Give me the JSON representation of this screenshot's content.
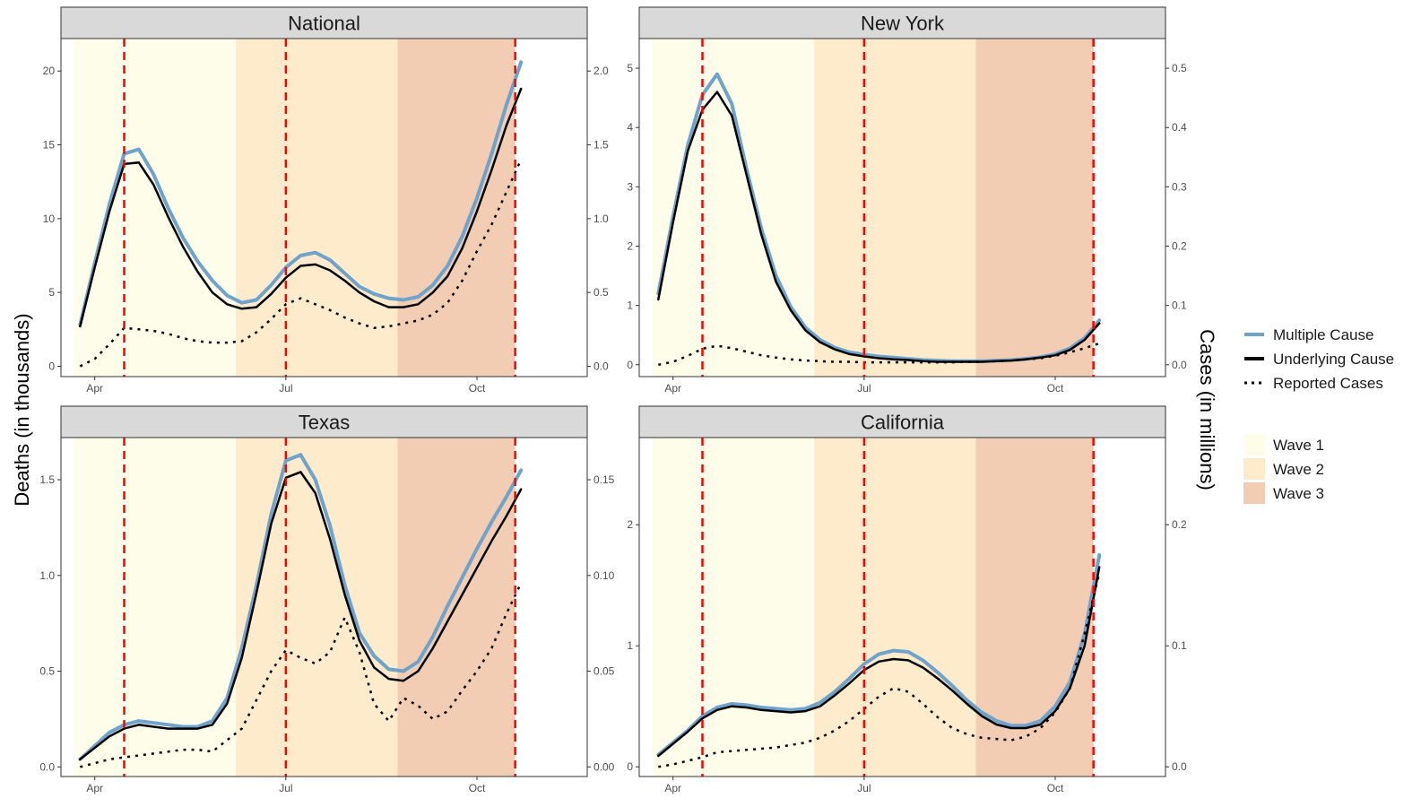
{
  "figure": {
    "left_axis_title": "Deaths (in thousands)",
    "right_axis_title": "Cases (in millions)"
  },
  "legend": {
    "lines": [
      {
        "label": "Multiple Cause",
        "color": "#6fa3cc",
        "style": "solid"
      },
      {
        "label": "Underlying Cause",
        "color": "#000000",
        "style": "solid"
      },
      {
        "label": "Reported Cases",
        "color": "#000000",
        "style": "dotted"
      }
    ],
    "waves": [
      {
        "label": "Wave 1",
        "color": "#fefdea"
      },
      {
        "label": "Wave 2",
        "color": "#fdebcb"
      },
      {
        "label": "Wave 3",
        "color": "#f2cdb3"
      }
    ]
  },
  "colors": {
    "multiple": "#6fa3cc",
    "underlying": "#000000",
    "reported": "#000000",
    "peak_line": "#ff0000",
    "strip_bg": "#d9d9d9"
  },
  "chart_data": [
    {
      "type": "line",
      "title": "National",
      "x_ticks": [
        "Apr",
        "Jul",
        "Oct"
      ],
      "x_tick_weeks": [
        1,
        14,
        27
      ],
      "x_weeks_range": [
        -1.3,
        34.5
      ],
      "wave_bands_weeks": [
        [
          -0.4,
          10.6
        ],
        [
          10.6,
          21.6
        ],
        [
          21.6,
          29.6
        ]
      ],
      "peak_weeks": [
        3,
        14,
        29.6
      ],
      "left_axis": {
        "range": [
          -0.7,
          22.2
        ],
        "ticks": [
          0,
          5,
          10,
          15,
          20
        ]
      },
      "right_axis": {
        "range": [
          -0.07,
          2.22
        ],
        "ticks": [
          0.0,
          0.5,
          1.0,
          1.5,
          2.0
        ],
        "tick_labels": [
          "0.0",
          "0.5",
          "1.0",
          "1.5",
          "2.0"
        ]
      },
      "weeks": [
        0,
        1,
        2,
        3,
        4,
        5,
        6,
        7,
        8,
        9,
        10,
        11,
        12,
        13,
        14,
        15,
        16,
        17,
        18,
        19,
        20,
        21,
        22,
        23,
        24,
        25,
        26,
        27,
        28,
        29,
        30
      ],
      "series": [
        {
          "name": "Multiple Cause",
          "axis": "left",
          "values": [
            2.8,
            7.0,
            11.0,
            14.4,
            14.7,
            13.0,
            10.7,
            8.7,
            7.1,
            5.8,
            4.8,
            4.3,
            4.5,
            5.5,
            6.7,
            7.5,
            7.7,
            7.2,
            6.3,
            5.4,
            4.9,
            4.6,
            4.5,
            4.7,
            5.5,
            6.8,
            8.8,
            11.4,
            14.4,
            17.7,
            20.6
          ]
        },
        {
          "name": "Underlying Cause",
          "axis": "left",
          "values": [
            2.7,
            6.7,
            10.5,
            13.7,
            13.8,
            12.3,
            10.1,
            8.1,
            6.4,
            5.0,
            4.2,
            3.9,
            4.0,
            4.9,
            6.0,
            6.8,
            6.9,
            6.5,
            5.8,
            5.0,
            4.4,
            4.0,
            4.0,
            4.2,
            5.0,
            6.1,
            8.0,
            10.5,
            13.3,
            16.3,
            18.8
          ]
        },
        {
          "name": "Reported Cases",
          "axis": "right",
          "values": [
            0.0,
            0.05,
            0.15,
            0.26,
            0.25,
            0.24,
            0.22,
            0.19,
            0.17,
            0.16,
            0.16,
            0.17,
            0.23,
            0.32,
            0.42,
            0.46,
            0.42,
            0.38,
            0.33,
            0.29,
            0.26,
            0.27,
            0.29,
            0.31,
            0.35,
            0.43,
            0.58,
            0.78,
            0.96,
            1.18,
            1.4
          ]
        }
      ]
    },
    {
      "type": "line",
      "title": "New York",
      "x_ticks": [
        "Apr",
        "Jul",
        "Oct"
      ],
      "x_tick_weeks": [
        1,
        14,
        27
      ],
      "x_weeks_range": [
        -1.3,
        34.5
      ],
      "wave_bands_weeks": [
        [
          -0.4,
          10.6
        ],
        [
          10.6,
          21.6
        ],
        [
          21.6,
          29.6
        ]
      ],
      "peak_weeks": [
        3,
        14,
        29.6
      ],
      "left_axis": {
        "range": [
          -0.2,
          5.5
        ],
        "ticks": [
          0,
          1,
          2,
          3,
          4,
          5
        ]
      },
      "right_axis": {
        "range": [
          -0.02,
          0.55
        ],
        "ticks": [
          0.0,
          0.1,
          0.2,
          0.3,
          0.4,
          0.5
        ],
        "tick_labels": [
          "0.0",
          "0.1",
          "0.2",
          "0.3",
          "0.4",
          "0.5"
        ]
      },
      "weeks": [
        0,
        1,
        2,
        3,
        4,
        5,
        6,
        7,
        8,
        9,
        10,
        11,
        12,
        13,
        14,
        15,
        16,
        17,
        18,
        19,
        20,
        21,
        22,
        23,
        24,
        25,
        26,
        27,
        28,
        29,
        30
      ],
      "series": [
        {
          "name": "Multiple Cause",
          "axis": "left",
          "values": [
            1.2,
            2.5,
            3.7,
            4.55,
            4.9,
            4.4,
            3.3,
            2.3,
            1.5,
            0.98,
            0.63,
            0.42,
            0.29,
            0.21,
            0.17,
            0.14,
            0.12,
            0.1,
            0.08,
            0.07,
            0.06,
            0.06,
            0.06,
            0.07,
            0.08,
            0.1,
            0.13,
            0.18,
            0.28,
            0.45,
            0.75
          ]
        },
        {
          "name": "Underlying Cause",
          "axis": "left",
          "values": [
            1.1,
            2.4,
            3.6,
            4.3,
            4.6,
            4.2,
            3.2,
            2.2,
            1.4,
            0.92,
            0.58,
            0.38,
            0.26,
            0.18,
            0.14,
            0.11,
            0.09,
            0.08,
            0.06,
            0.05,
            0.05,
            0.05,
            0.05,
            0.06,
            0.07,
            0.09,
            0.12,
            0.16,
            0.25,
            0.42,
            0.7
          ]
        },
        {
          "name": "Reported Cases",
          "axis": "right",
          "values": [
            0.0,
            0.005,
            0.015,
            0.027,
            0.032,
            0.028,
            0.022,
            0.016,
            0.012,
            0.009,
            0.007,
            0.006,
            0.005,
            0.005,
            0.004,
            0.004,
            0.004,
            0.004,
            0.004,
            0.004,
            0.004,
            0.005,
            0.005,
            0.006,
            0.007,
            0.009,
            0.011,
            0.015,
            0.021,
            0.028,
            0.036
          ]
        }
      ]
    },
    {
      "type": "line",
      "title": "Texas",
      "x_ticks": [
        "Apr",
        "Jul",
        "Oct"
      ],
      "x_tick_weeks": [
        1,
        14,
        27
      ],
      "x_weeks_range": [
        -1.3,
        34.5
      ],
      "wave_bands_weeks": [
        [
          -0.4,
          10.6
        ],
        [
          10.6,
          21.6
        ],
        [
          21.6,
          29.6
        ]
      ],
      "peak_weeks": [
        3,
        14,
        29.6
      ],
      "left_axis": {
        "range": [
          -0.05,
          1.72
        ],
        "ticks": [
          0.0,
          0.5,
          1.0,
          1.5
        ],
        "tick_labels": [
          "0.0",
          "0.5",
          "1.0",
          "1.5"
        ]
      },
      "right_axis": {
        "range": [
          -0.005,
          0.172
        ],
        "ticks": [
          0.0,
          0.05,
          0.1,
          0.15
        ],
        "tick_labels": [
          "0.00",
          "0.05",
          "0.10",
          "0.15"
        ]
      },
      "weeks": [
        0,
        1,
        2,
        3,
        4,
        5,
        6,
        7,
        8,
        9,
        10,
        11,
        12,
        13,
        14,
        15,
        16,
        17,
        18,
        19,
        20,
        21,
        22,
        23,
        24,
        25,
        26,
        27,
        28,
        29,
        30
      ],
      "series": [
        {
          "name": "Multiple Cause",
          "axis": "left",
          "values": [
            0.04,
            0.11,
            0.18,
            0.22,
            0.24,
            0.23,
            0.22,
            0.21,
            0.21,
            0.24,
            0.36,
            0.62,
            0.95,
            1.32,
            1.6,
            1.63,
            1.5,
            1.26,
            0.95,
            0.7,
            0.58,
            0.51,
            0.5,
            0.55,
            0.68,
            0.84,
            0.99,
            1.14,
            1.28,
            1.41,
            1.55
          ]
        },
        {
          "name": "Underlying Cause",
          "axis": "left",
          "values": [
            0.04,
            0.1,
            0.16,
            0.2,
            0.22,
            0.21,
            0.2,
            0.2,
            0.2,
            0.22,
            0.33,
            0.57,
            0.91,
            1.27,
            1.51,
            1.54,
            1.43,
            1.19,
            0.9,
            0.66,
            0.52,
            0.46,
            0.45,
            0.5,
            0.62,
            0.76,
            0.9,
            1.04,
            1.18,
            1.31,
            1.45
          ]
        },
        {
          "name": "Reported Cases",
          "axis": "right",
          "values": [
            0.0,
            0.002,
            0.004,
            0.005,
            0.006,
            0.007,
            0.008,
            0.009,
            0.009,
            0.008,
            0.014,
            0.02,
            0.035,
            0.05,
            0.061,
            0.057,
            0.054,
            0.06,
            0.078,
            0.06,
            0.033,
            0.024,
            0.036,
            0.032,
            0.025,
            0.029,
            0.04,
            0.05,
            0.062,
            0.08,
            0.096
          ]
        }
      ]
    },
    {
      "type": "line",
      "title": "California",
      "x_ticks": [
        "Apr",
        "Jul",
        "Oct"
      ],
      "x_tick_weeks": [
        1,
        14,
        27
      ],
      "x_weeks_range": [
        -1.3,
        34.5
      ],
      "wave_bands_weeks": [
        [
          -0.4,
          10.6
        ],
        [
          10.6,
          21.6
        ],
        [
          21.6,
          29.6
        ]
      ],
      "peak_weeks": [
        3,
        14,
        29.6
      ],
      "left_axis": {
        "range": [
          -0.08,
          2.72
        ],
        "ticks": [
          0,
          1,
          2
        ]
      },
      "right_axis": {
        "range": [
          -0.008,
          0.272
        ],
        "ticks": [
          0.0,
          0.1,
          0.2
        ],
        "tick_labels": [
          "0.0",
          "0.1",
          "0.2"
        ]
      },
      "weeks": [
        0,
        1,
        2,
        3,
        4,
        5,
        6,
        7,
        8,
        9,
        10,
        11,
        12,
        13,
        14,
        15,
        16,
        17,
        18,
        19,
        20,
        21,
        22,
        23,
        24,
        25,
        26,
        27,
        28,
        29,
        30
      ],
      "series": [
        {
          "name": "Multiple Cause",
          "axis": "left",
          "values": [
            0.1,
            0.2,
            0.3,
            0.42,
            0.49,
            0.52,
            0.51,
            0.49,
            0.48,
            0.47,
            0.48,
            0.53,
            0.62,
            0.73,
            0.85,
            0.93,
            0.96,
            0.95,
            0.88,
            0.78,
            0.67,
            0.55,
            0.45,
            0.38,
            0.34,
            0.34,
            0.38,
            0.5,
            0.7,
            1.1,
            1.75
          ]
        },
        {
          "name": "Underlying Cause",
          "axis": "left",
          "values": [
            0.09,
            0.19,
            0.29,
            0.4,
            0.47,
            0.5,
            0.49,
            0.47,
            0.46,
            0.45,
            0.46,
            0.5,
            0.59,
            0.69,
            0.8,
            0.87,
            0.89,
            0.88,
            0.82,
            0.73,
            0.63,
            0.52,
            0.42,
            0.35,
            0.32,
            0.32,
            0.35,
            0.46,
            0.65,
            1.0,
            1.65
          ]
        },
        {
          "name": "Reported Cases",
          "axis": "right",
          "values": [
            0.0,
            0.002,
            0.005,
            0.008,
            0.012,
            0.013,
            0.014,
            0.015,
            0.016,
            0.018,
            0.02,
            0.024,
            0.03,
            0.038,
            0.048,
            0.058,
            0.065,
            0.062,
            0.052,
            0.041,
            0.032,
            0.027,
            0.024,
            0.023,
            0.022,
            0.025,
            0.032,
            0.045,
            0.065,
            0.11,
            0.16
          ]
        }
      ]
    }
  ]
}
